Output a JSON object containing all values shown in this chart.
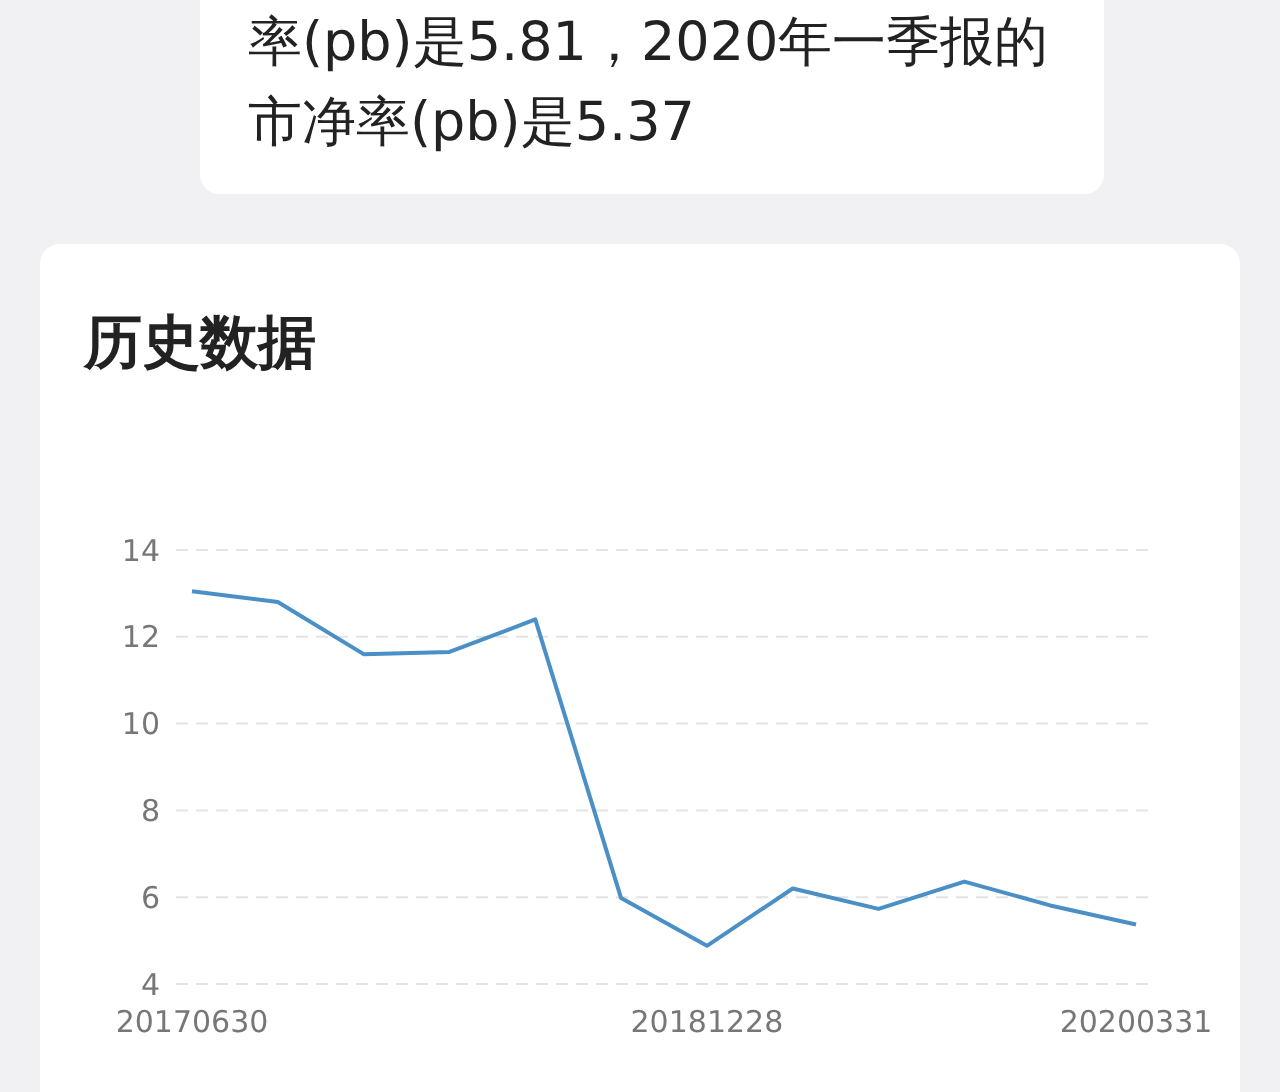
{
  "chart_data": {
    "type": "line",
    "title": "历史数据",
    "annotations": [
      "率(pb)是5.81，2020年一季报的市净率(pb)是5.37"
    ],
    "categories": [
      "20170630",
      null,
      null,
      null,
      null,
      null,
      "20181228",
      null,
      null,
      null,
      null,
      "20200331"
    ],
    "series": [
      {
        "color": "#4a8fc6",
        "values": [
          13.05,
          12.8,
          11.6,
          11.65,
          12.4,
          5.98,
          4.88,
          6.2,
          5.73,
          6.36,
          5.81,
          5.37
        ]
      }
    ],
    "ylim": [
      4,
      14
    ],
    "yticks": [
      4,
      6,
      8,
      10,
      12,
      14
    ],
    "grid": "y",
    "legend": false,
    "marker": "none",
    "line_style": "solid"
  }
}
